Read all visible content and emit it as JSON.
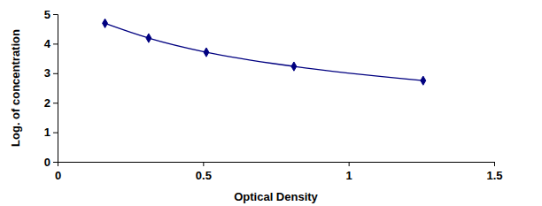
{
  "chart_data": {
    "type": "line",
    "x_label": "Optical Density",
    "y_label": "Log. of concentration",
    "x": [
      0.163,
      0.313,
      0.511,
      0.812,
      1.256
    ],
    "values": [
      4.69,
      4.19,
      3.71,
      3.23,
      2.75
    ],
    "color": "#000080",
    "marker": "diamond",
    "line_style": "smooth",
    "xlim": [
      0,
      1.5
    ],
    "xticks": [
      0,
      0.5,
      1,
      1.5
    ],
    "ylim": [
      0,
      5
    ],
    "yticks": [
      0,
      1,
      2,
      3,
      4,
      5
    ],
    "grid": false
  }
}
